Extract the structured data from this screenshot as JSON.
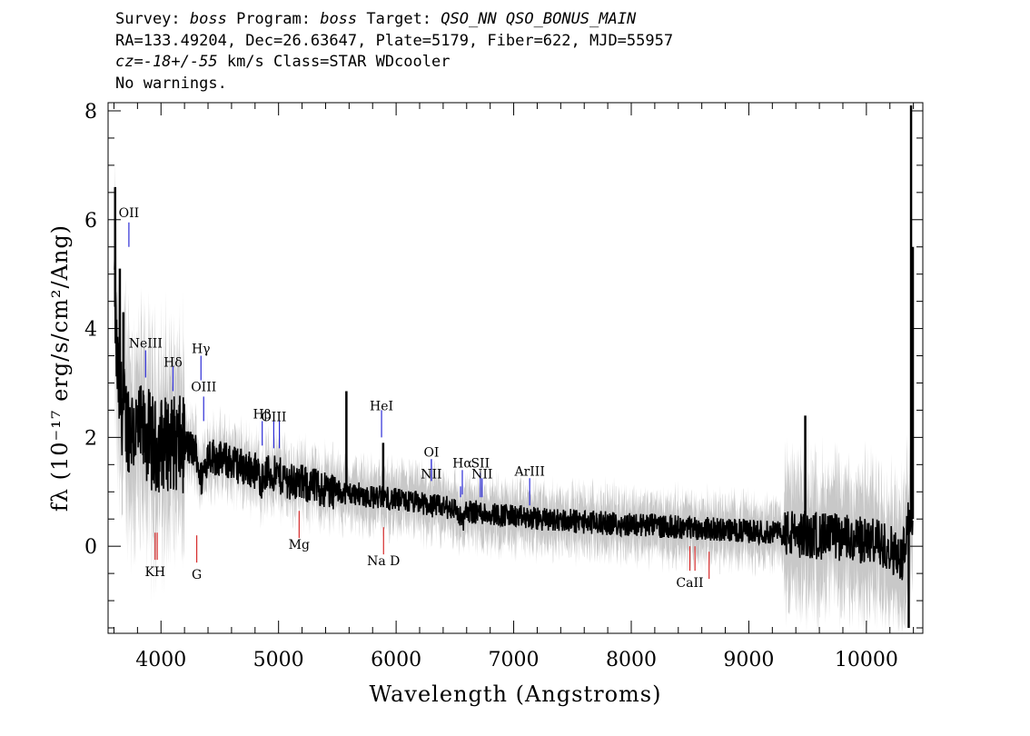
{
  "header": {
    "line1": {
      "survey_label": "Survey: ",
      "survey": "boss",
      "program_label": " Program: ",
      "program": "boss",
      "target_label": " Target: ",
      "target": "QSO_NN QSO_BONUS_MAIN"
    },
    "line2": "RA=133.49204, Dec=26.63647, Plate=5179, Fiber=622, MJD=55957",
    "line3": {
      "cz": "cz=-18+/-55",
      "rest": " km/s Class=STAR WDcooler"
    },
    "line4": "No warnings."
  },
  "chart_data": {
    "type": "line",
    "xlabel": "Wavelength (Angstroms)",
    "ylabel": "fλ (10⁻¹⁷ erg/s/cm²/Ang)",
    "xlim": [
      3550,
      10480
    ],
    "ylim": [
      -1.6,
      8.15
    ],
    "x_ticks": [
      4000,
      5000,
      6000,
      7000,
      8000,
      9000,
      10000
    ],
    "y_ticks": [
      0,
      2,
      4,
      6,
      8
    ],
    "grid": false,
    "colors": {
      "flux": "#000000",
      "error_band": "#c8c8c8",
      "emission_lines": "#2b2bd6",
      "absorption_lines": "#d62b2b"
    },
    "series": [
      {
        "role": "flux",
        "points": [
          [
            3600,
            5.2
          ],
          [
            3620,
            3.6
          ],
          [
            3640,
            2.9
          ],
          [
            3660,
            2.6
          ],
          [
            3680,
            2.5
          ],
          [
            3700,
            2.3
          ],
          [
            3750,
            2.2
          ],
          [
            3800,
            2.1
          ],
          [
            3850,
            2.05
          ],
          [
            3900,
            2.0
          ],
          [
            3950,
            1.8
          ],
          [
            4000,
            1.9
          ],
          [
            4100,
            1.9
          ],
          [
            4200,
            1.85
          ],
          [
            4300,
            1.75
          ],
          [
            4340,
            1.2
          ],
          [
            4400,
            1.7
          ],
          [
            4500,
            1.6
          ],
          [
            4600,
            1.55
          ],
          [
            4700,
            1.45
          ],
          [
            4800,
            1.4
          ],
          [
            4861,
            1.2
          ],
          [
            4900,
            1.35
          ],
          [
            5000,
            1.3
          ],
          [
            5100,
            1.2
          ],
          [
            5200,
            1.15
          ],
          [
            5300,
            1.1
          ],
          [
            5400,
            1.05
          ],
          [
            5500,
            1.0
          ],
          [
            5600,
            0.98
          ],
          [
            5700,
            0.95
          ],
          [
            5800,
            0.9
          ],
          [
            5900,
            0.9
          ],
          [
            6000,
            0.85
          ],
          [
            6100,
            0.82
          ],
          [
            6200,
            0.8
          ],
          [
            6300,
            0.75
          ],
          [
            6400,
            0.72
          ],
          [
            6500,
            0.7
          ],
          [
            6563,
            0.45
          ],
          [
            6600,
            0.65
          ],
          [
            6700,
            0.62
          ],
          [
            6800,
            0.6
          ],
          [
            6900,
            0.58
          ],
          [
            7000,
            0.55
          ],
          [
            7100,
            0.52
          ],
          [
            7200,
            0.5
          ],
          [
            7400,
            0.48
          ],
          [
            7600,
            0.45
          ],
          [
            7800,
            0.42
          ],
          [
            8000,
            0.4
          ],
          [
            8200,
            0.38
          ],
          [
            8400,
            0.35
          ],
          [
            8600,
            0.33
          ],
          [
            8800,
            0.3
          ],
          [
            9000,
            0.28
          ],
          [
            9200,
            0.25
          ],
          [
            9400,
            0.22
          ],
          [
            9600,
            0.2
          ],
          [
            9800,
            0.15
          ],
          [
            10000,
            0.1
          ],
          [
            10200,
            0.0
          ],
          [
            10300,
            -0.3
          ],
          [
            10350,
            0.5
          ]
        ],
        "spikes": [
          [
            3610,
            6.6
          ],
          [
            3650,
            5.1
          ],
          [
            3680,
            4.3
          ],
          [
            5577,
            2.85
          ],
          [
            5890,
            1.9
          ],
          [
            9480,
            2.4
          ],
          [
            10380,
            8.1
          ],
          [
            10360,
            -1.5
          ],
          [
            10395,
            5.5
          ]
        ]
      }
    ],
    "lines": [
      {
        "label": "OII",
        "wave": 3727,
        "kind": "emission",
        "label_y": 6.05,
        "y0": 5.5,
        "y1": 5.95
      },
      {
        "label": "NeIII",
        "wave": 3869,
        "kind": "emission",
        "label_y": 3.65,
        "y0": 3.1,
        "y1": 3.6
      },
      {
        "label": "Hδ",
        "wave": 4102,
        "kind": "emission",
        "label_y": 3.3,
        "y0": 2.85,
        "y1": 3.3
      },
      {
        "label": "Hγ",
        "wave": 4340,
        "kind": "emission",
        "label_y": 3.55,
        "y0": 3.05,
        "y1": 3.5
      },
      {
        "label": "OIII",
        "wave": 4363,
        "kind": "emission",
        "label_y": 2.85,
        "y0": 2.3,
        "y1": 2.75
      },
      {
        "label": "Hβ",
        "wave": 4861,
        "kind": "emission",
        "label_y": 2.35,
        "y0": 1.85,
        "y1": 2.3
      },
      {
        "label": "OIII",
        "wave": 4959,
        "kind": "emission",
        "label_y": 2.3,
        "y0": 1.8,
        "y1": 2.3
      },
      {
        "label": "",
        "wave": 5007,
        "kind": "emission",
        "label_y": 2.3,
        "y0": 1.8,
        "y1": 2.3
      },
      {
        "label": "HeI",
        "wave": 5876,
        "kind": "emission",
        "label_y": 2.5,
        "y0": 2.0,
        "y1": 2.5
      },
      {
        "label": "OI",
        "wave": 6300,
        "kind": "emission",
        "label_y": 1.65,
        "y0": 1.2,
        "y1": 1.6
      },
      {
        "label": "NII",
        "wave": 6300,
        "kind": "emission",
        "label_y": 1.25,
        "y0": 1.2,
        "y1": 1.6
      },
      {
        "label": "Hα",
        "wave": 6563,
        "kind": "emission",
        "label_y": 1.45,
        "y0": 0.95,
        "y1": 1.4
      },
      {
        "label": "",
        "wave": 6548,
        "kind": "emission",
        "label_y": 1.1,
        "y0": 0.9,
        "y1": 1.1
      },
      {
        "label": "SII",
        "wave": 6716,
        "kind": "emission",
        "label_y": 1.45,
        "y0": 0.9,
        "y1": 1.35
      },
      {
        "label": "NII",
        "wave": 6731,
        "kind": "emission",
        "label_y": 1.25,
        "y0": 0.9,
        "y1": 1.25
      },
      {
        "label": "ArIII",
        "wave": 7136,
        "kind": "emission",
        "label_y": 1.3,
        "y0": 0.75,
        "y1": 1.25
      },
      {
        "label": "KH",
        "wave": 3950,
        "kind": "absorption",
        "label_y": -0.55,
        "y0": -0.25,
        "y1": 0.25
      },
      {
        "label": "",
        "wave": 3968,
        "kind": "absorption",
        "label_y": -0.55,
        "y0": -0.25,
        "y1": 0.25
      },
      {
        "label": "G",
        "wave": 4304,
        "kind": "absorption",
        "label_y": -0.6,
        "y0": -0.3,
        "y1": 0.2
      },
      {
        "label": "Mg",
        "wave": 5175,
        "kind": "absorption",
        "label_y": -0.05,
        "y0": 0.15,
        "y1": 0.65
      },
      {
        "label": "Na D",
        "wave": 5893,
        "kind": "absorption",
        "label_y": -0.35,
        "y0": -0.15,
        "y1": 0.35
      },
      {
        "label": "CaII",
        "wave": 8498,
        "kind": "absorption",
        "label_y": -0.75,
        "y0": -0.45,
        "y1": 0.0
      },
      {
        "label": "",
        "wave": 8542,
        "kind": "absorption",
        "label_y": -0.75,
        "y0": -0.45,
        "y1": 0.0
      },
      {
        "label": "",
        "wave": 8662,
        "kind": "absorption",
        "label_y": -0.75,
        "y0": -0.6,
        "y1": -0.1
      }
    ]
  }
}
